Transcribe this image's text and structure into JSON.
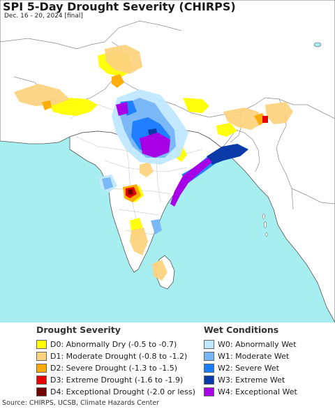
{
  "title": "SPI 5-Day Drought Severity (CHIRPS)",
  "subtitle": "Dec. 16 - 20, 2024 [final]",
  "source": "Source: CHIRPS, UCSB, Climate Hazards Center",
  "colors": {
    "ocean": "#a6eef0",
    "land": "#ffffff",
    "border": "#9a9a9a",
    "coast": "#555555"
  },
  "drought_legend": {
    "title": "Drought Severity",
    "items": [
      {
        "label": "D0: Abnormally Dry (-0.5 to -0.7)",
        "color": "#ffff00"
      },
      {
        "label": "D1: Moderate Drought (-0.8 to -1.2)",
        "color": "#fcd37f"
      },
      {
        "label": "D2: Severe Drought (-1.3 to -1.5)",
        "color": "#ffaa00"
      },
      {
        "label": "D3: Extreme Drought (-1.6 to -1.9)",
        "color": "#e60000"
      },
      {
        "label": "D4: Exceptional Drought (-2.0 or less)",
        "color": "#730000"
      }
    ]
  },
  "wet_legend": {
    "title": "Wet Conditions",
    "items": [
      {
        "label": "W0: Abnormally Wet",
        "color": "#bfe8ff"
      },
      {
        "label": "W1: Moderate Wet",
        "color": "#78b6f7"
      },
      {
        "label": "W2: Severe Wet",
        "color": "#1c7cff"
      },
      {
        "label": "W3: Extreme Wet",
        "color": "#0a3aa8"
      },
      {
        "label": "W4: Exceptional Wet",
        "color": "#a800e6"
      }
    ]
  }
}
